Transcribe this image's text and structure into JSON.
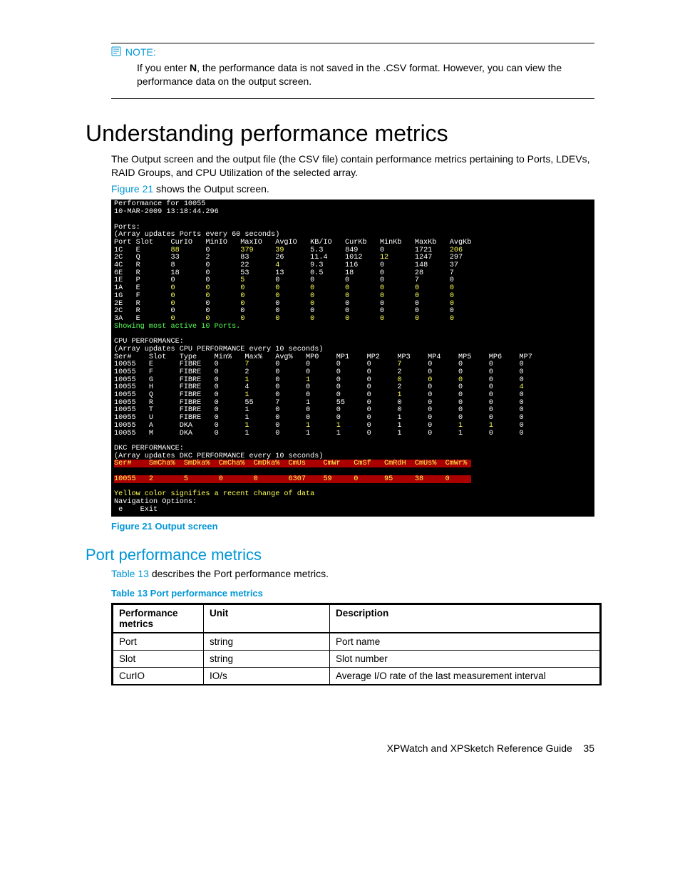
{
  "note": {
    "label": "NOTE:",
    "body_prefix": "If you enter ",
    "body_bold": "N",
    "body_suffix": ", the performance data is not saved in the .CSV format. However, you can view the performance data on the output screen."
  },
  "heading": "Understanding performance metrics",
  "intro1": "The Output screen and the output file (the CSV file) contain performance metrics pertaining to Ports, LDEVs, RAID Groups, and CPU Utilization of the selected array.",
  "intro2_link": "Figure 21",
  "intro2_rest": " shows the Output screen.",
  "terminal": {
    "header1": "Performance for 10055",
    "header2": "10-MAR-2009 13:18:44.296",
    "ports_label": "Ports:",
    "ports_update": "(Array updates Ports every 60 seconds)",
    "ports_cols": [
      "Port",
      "Slot",
      "CurIO",
      "MinIO",
      "MaxIO",
      "AvgIO",
      "KB/IO",
      "CurKb",
      "MinKb",
      "MaxKb",
      "AvgKb"
    ],
    "ports_rows": [
      {
        "v": [
          "1C",
          "E",
          "88",
          "0",
          "379",
          "39",
          "5.3",
          "849",
          "0",
          "1721",
          "206"
        ],
        "y": [
          2,
          4,
          5,
          10
        ]
      },
      {
        "v": [
          "2C",
          "Q",
          "33",
          "2",
          "83",
          "26",
          "11.4",
          "1012",
          "12",
          "1247",
          "297"
        ],
        "y": [
          8
        ]
      },
      {
        "v": [
          "4C",
          "R",
          "8",
          "0",
          "22",
          "4",
          "9.3",
          "116",
          "0",
          "148",
          "37"
        ],
        "y": [
          5
        ]
      },
      {
        "v": [
          "6E",
          "R",
          "18",
          "0",
          "53",
          "13",
          "0.5",
          "18",
          "0",
          "28",
          "7"
        ],
        "y": []
      },
      {
        "v": [
          "1E",
          "P",
          "0",
          "0",
          "5",
          "0",
          "0",
          "0",
          "0",
          "7",
          "0"
        ],
        "y": [
          4
        ]
      },
      {
        "v": [
          "1A",
          "E",
          "0",
          "0",
          "0",
          "0",
          "0",
          "0",
          "0",
          "0",
          "0"
        ],
        "y": [
          2,
          3,
          4,
          5,
          6,
          7,
          8,
          9,
          10
        ]
      },
      {
        "v": [
          "1G",
          "F",
          "0",
          "0",
          "0",
          "0",
          "0",
          "0",
          "0",
          "0",
          "0"
        ],
        "y": [
          2,
          3,
          4,
          5,
          6,
          7,
          8,
          9,
          10
        ]
      },
      {
        "v": [
          "2E",
          "R",
          "0",
          "0",
          "0",
          "0",
          "0",
          "0",
          "0",
          "0",
          "0"
        ],
        "y": [
          2,
          4,
          6,
          10
        ]
      },
      {
        "v": [
          "2C",
          "R",
          "0",
          "0",
          "0",
          "0",
          "0",
          "0",
          "0",
          "0",
          "0"
        ],
        "y": []
      },
      {
        "v": [
          "3A",
          "E",
          "0",
          "0",
          "0",
          "0",
          "0",
          "0",
          "0",
          "0",
          "0"
        ],
        "y": [
          2,
          3,
          4,
          5,
          6,
          7,
          8,
          9,
          10
        ]
      }
    ],
    "ports_footer": "Showing most active 10 Ports.",
    "cpu_label": "CPU PERFORMANCE:",
    "cpu_update": "(Array updates CPU PERFORMANCE every 10 seconds)",
    "cpu_cols": [
      "Ser#",
      "Slot",
      "Type",
      "Min%",
      "Max%",
      "Avg%",
      "MP0",
      "MP1",
      "MP2",
      "MP3",
      "MP4",
      "MP5",
      "MP6",
      "MP7"
    ],
    "cpu_rows": [
      {
        "v": [
          "10055",
          "E",
          "FIBRE",
          "0",
          "7",
          "0",
          "0",
          "0",
          "0",
          "7",
          "0",
          "0",
          "0",
          "0"
        ],
        "y": [
          4,
          9
        ]
      },
      {
        "v": [
          "10055",
          "F",
          "FIBRE",
          "0",
          "2",
          "0",
          "0",
          "0",
          "0",
          "2",
          "0",
          "0",
          "0",
          "0"
        ],
        "y": []
      },
      {
        "v": [
          "10055",
          "G",
          "FIBRE",
          "0",
          "1",
          "0",
          "1",
          "0",
          "0",
          "0",
          "0",
          "0",
          "0",
          "0"
        ],
        "y": [
          4,
          6,
          9,
          10,
          11
        ]
      },
      {
        "v": [
          "10055",
          "H",
          "FIBRE",
          "0",
          "4",
          "0",
          "0",
          "0",
          "0",
          "2",
          "0",
          "0",
          "0",
          "4"
        ],
        "y": [
          13
        ]
      },
      {
        "v": [
          "10055",
          "Q",
          "FIBRE",
          "0",
          "1",
          "0",
          "0",
          "0",
          "0",
          "1",
          "0",
          "0",
          "0",
          "0"
        ],
        "y": [
          4,
          9
        ]
      },
      {
        "v": [
          "10055",
          "R",
          "FIBRE",
          "0",
          "55",
          "7",
          "1",
          "55",
          "0",
          "0",
          "0",
          "0",
          "0",
          "0"
        ],
        "y": []
      },
      {
        "v": [
          "10055",
          "T",
          "FIBRE",
          "0",
          "1",
          "0",
          "0",
          "0",
          "0",
          "0",
          "0",
          "0",
          "0",
          "0"
        ],
        "y": []
      },
      {
        "v": [
          "10055",
          "U",
          "FIBRE",
          "0",
          "1",
          "0",
          "0",
          "0",
          "0",
          "1",
          "0",
          "0",
          "0",
          "0"
        ],
        "y": []
      },
      {
        "v": [
          "10055",
          "A",
          "DKA",
          "0",
          "1",
          "0",
          "1",
          "1",
          "0",
          "1",
          "0",
          "1",
          "1",
          "0"
        ],
        "y": [
          4,
          6,
          7,
          11,
          12
        ]
      },
      {
        "v": [
          "10055",
          "M",
          "DKA",
          "0",
          "1",
          "0",
          "1",
          "1",
          "0",
          "1",
          "0",
          "1",
          "0",
          "0"
        ],
        "y": []
      }
    ],
    "dkc_label": "DKC PERFORMANCE:",
    "dkc_update": "(Array updates DKC PERFORMANCE every 10 seconds)",
    "dkc_cols": [
      "Ser#",
      "SmCha%",
      "SmDka%",
      "CmCha%",
      "CmDka%",
      "CmUs",
      "CmWr",
      "CmSf",
      "CmRdH",
      "CmUs%",
      "CmWr%"
    ],
    "dkc_row": [
      "10055",
      "2",
      "5",
      "0",
      "0",
      "6307",
      "59",
      "0",
      "95",
      "38",
      "0"
    ],
    "yellow_msg": "Yellow color signifies a recent change of data",
    "nav_lbl": "Navigation Options:",
    "nav_exit": " e    Exit"
  },
  "fig_caption": "Figure 21 Output screen",
  "subsection": "Port performance metrics",
  "sub_intro_link": "Table 13",
  "sub_intro_rest": " describes the Port performance metrics.",
  "table_caption": "Table 13 Port performance metrics",
  "table": {
    "headers": [
      "Performance metrics",
      "Unit",
      "Description"
    ],
    "rows": [
      [
        "Port",
        "string",
        "Port name"
      ],
      [
        "Slot",
        "string",
        "Slot number"
      ],
      [
        "CurIO",
        "IO/s",
        "Average I/O rate of the last measurement interval"
      ]
    ]
  },
  "footer_text": "XPWatch and XPSketch Reference Guide",
  "footer_page": "35",
  "col_widths": {
    "ports": [
      5,
      8,
      8,
      8,
      8,
      8,
      8,
      8,
      8,
      8,
      8
    ],
    "cpu": [
      8,
      7,
      8,
      7,
      7,
      7,
      7,
      7,
      7,
      7,
      7,
      7,
      7,
      5
    ],
    "dkc": [
      8,
      8,
      8,
      8,
      8,
      8,
      7,
      7,
      7,
      7,
      6
    ]
  }
}
